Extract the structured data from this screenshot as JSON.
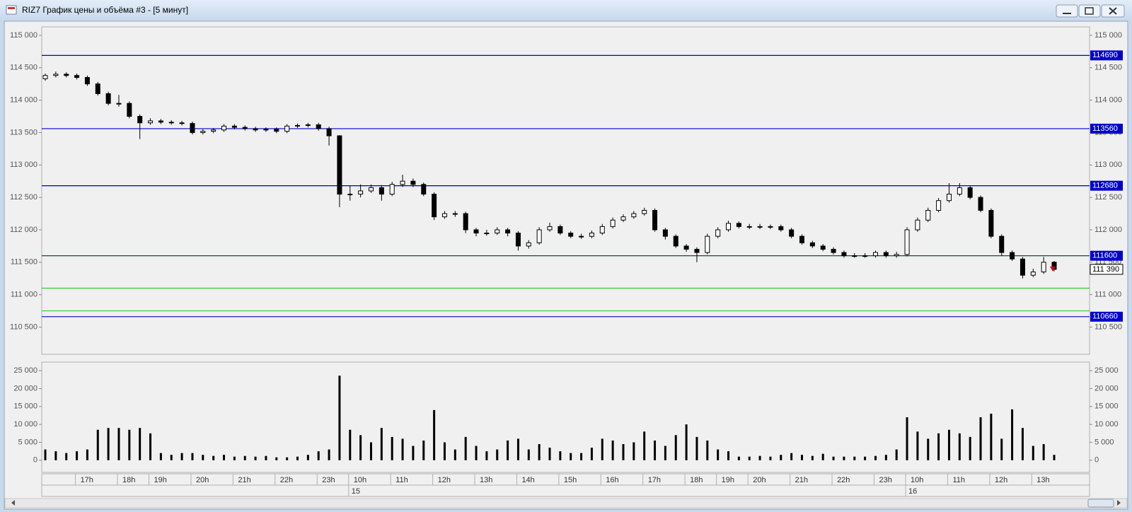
{
  "window": {
    "title": "RIZ7 График цены и объёма #3 - [5 минут]"
  },
  "chart_data": [
    {
      "type": "candlestick",
      "categories": [
        null,
        null,
        null,
        "17h",
        null,
        null,
        null,
        "18h",
        null,
        null,
        "19h",
        null,
        null,
        null,
        "20h",
        null,
        null,
        null,
        "21h",
        null,
        null,
        null,
        "22h",
        null,
        null,
        null,
        "23h",
        null,
        null,
        "10h",
        null,
        null,
        null,
        "11h",
        null,
        null,
        null,
        "12h",
        null,
        null,
        null,
        "13h",
        null,
        null,
        null,
        "14h",
        null,
        null,
        null,
        "15h",
        null,
        null,
        null,
        "16h",
        null,
        null,
        null,
        "17h",
        null,
        null,
        null,
        "18h",
        null,
        null,
        "19h",
        null,
        null,
        "20h",
        null,
        null,
        null,
        "21h",
        null,
        null,
        null,
        "22h",
        null,
        null,
        null,
        "23h",
        null,
        null,
        "10h",
        null,
        null,
        null,
        "11h",
        null,
        null,
        null,
        "12h",
        null,
        null,
        null,
        "13h",
        null,
        null
      ],
      "dates": [
        null,
        null,
        null,
        null,
        null,
        null,
        null,
        null,
        null,
        null,
        null,
        null,
        null,
        null,
        null,
        null,
        null,
        null,
        null,
        null,
        null,
        null,
        null,
        null,
        null,
        null,
        null,
        null,
        null,
        "15",
        null,
        null,
        null,
        null,
        null,
        null,
        null,
        null,
        null,
        null,
        null,
        null,
        null,
        null,
        null,
        null,
        null,
        null,
        null,
        null,
        null,
        null,
        null,
        null,
        null,
        null,
        null,
        null,
        null,
        null,
        null,
        null,
        null,
        null,
        null,
        null,
        null,
        null,
        null,
        null,
        null,
        null,
        null,
        null,
        null,
        null,
        null,
        null,
        null,
        null,
        null,
        null,
        "16",
        null,
        null,
        null,
        null,
        null,
        null,
        null,
        null,
        null,
        null,
        null,
        null,
        null,
        null
      ],
      "open": [
        114330,
        114380,
        114400,
        114380,
        114350,
        114250,
        114100,
        113950,
        113950,
        113750,
        113650,
        113680,
        113660,
        113650,
        113640,
        113500,
        113520,
        113540,
        113600,
        113580,
        113560,
        113540,
        113550,
        113520,
        113600,
        113610,
        113620,
        113560,
        113450,
        112550,
        112550,
        112600,
        112650,
        112550,
        112700,
        112750,
        112700,
        112550,
        112200,
        112250,
        112250,
        112000,
        111950,
        111950,
        112000,
        111950,
        111750,
        111800,
        112000,
        112050,
        111950,
        111900,
        111900,
        111950,
        112050,
        112150,
        112200,
        112250,
        112300,
        112000,
        111900,
        111750,
        111700,
        111650,
        111900,
        112000,
        112100,
        112050,
        112050,
        112050,
        112050,
        112000,
        111900,
        111800,
        111750,
        111700,
        111650,
        111600,
        111600,
        111600,
        111650,
        111600,
        111620,
        112000,
        112150,
        112300,
        112450,
        112550,
        112650,
        112500,
        112300,
        111900,
        111650,
        111550,
        111300,
        111350,
        111500
      ],
      "high": [
        114410,
        114440,
        114430,
        114410,
        114380,
        114280,
        114130,
        114080,
        113980,
        113780,
        113720,
        113710,
        113690,
        113680,
        113670,
        113550,
        113570,
        113630,
        113630,
        113610,
        113590,
        113580,
        113580,
        113630,
        113640,
        113650,
        113650,
        113590,
        113460,
        112680,
        112700,
        112700,
        112690,
        112740,
        112850,
        112790,
        112730,
        112580,
        112290,
        112290,
        112280,
        112030,
        112000,
        112040,
        112030,
        111980,
        111840,
        112040,
        112110,
        112080,
        111980,
        111940,
        111990,
        112090,
        112190,
        112240,
        112290,
        112340,
        112330,
        112030,
        111930,
        111780,
        111730,
        111940,
        112040,
        112140,
        112130,
        112090,
        112090,
        112080,
        112080,
        112030,
        111930,
        111830,
        111780,
        111730,
        111680,
        111640,
        111640,
        111680,
        111680,
        111660,
        112040,
        112190,
        112340,
        112490,
        112720,
        112720,
        112680,
        112530,
        112330,
        111930,
        111680,
        111580,
        111400,
        111580,
        111520
      ],
      "low": [
        114300,
        114350,
        114350,
        114320,
        114220,
        114070,
        113920,
        113900,
        113720,
        113400,
        113620,
        113630,
        113620,
        113610,
        113470,
        113470,
        113490,
        113510,
        113550,
        113530,
        113510,
        113510,
        113490,
        113490,
        113570,
        113580,
        113530,
        113300,
        112350,
        112450,
        112500,
        112570,
        112450,
        112520,
        112660,
        112660,
        112520,
        112150,
        112170,
        112200,
        111950,
        111900,
        111910,
        111920,
        111900,
        111680,
        111710,
        111770,
        111970,
        111920,
        111870,
        111860,
        111870,
        111920,
        112020,
        112120,
        112170,
        112220,
        111970,
        111850,
        111720,
        111660,
        111500,
        111620,
        111870,
        111970,
        112020,
        112010,
        112010,
        112010,
        111970,
        111870,
        111770,
        111720,
        111670,
        111620,
        111570,
        111570,
        111570,
        111570,
        111570,
        111570,
        111590,
        111970,
        112120,
        112270,
        112420,
        112520,
        112470,
        112270,
        111870,
        111600,
        111520,
        111250,
        111270,
        111320,
        111360
      ],
      "close": [
        114380,
        114400,
        114380,
        114350,
        114250,
        114100,
        113950,
        113950,
        113750,
        113650,
        113680,
        113660,
        113650,
        113640,
        113500,
        113520,
        113540,
        113600,
        113580,
        113560,
        113540,
        113550,
        113520,
        113600,
        113610,
        113620,
        113560,
        113450,
        112550,
        112550,
        112600,
        112650,
        112550,
        112700,
        112750,
        112700,
        112550,
        112200,
        112250,
        112250,
        112000,
        111950,
        111950,
        112000,
        111950,
        111750,
        111800,
        112000,
        112050,
        111950,
        111900,
        111900,
        111950,
        112050,
        112150,
        112200,
        112250,
        112300,
        112000,
        111900,
        111750,
        111700,
        111650,
        111900,
        112000,
        112100,
        112050,
        112050,
        112050,
        112050,
        112000,
        111900,
        111800,
        111750,
        111700,
        111650,
        111600,
        111600,
        111600,
        111650,
        111600,
        111620,
        112000,
        112150,
        112300,
        112450,
        112550,
        112650,
        112500,
        112300,
        111900,
        111650,
        111550,
        111300,
        111350,
        111500,
        111390
      ],
      "up_color": "#ffffff",
      "down_color": "#000000",
      "ylim": [
        110080,
        115130
      ],
      "yticks": [
        {
          "value": 110500,
          "label": "110 500"
        },
        {
          "value": 111000,
          "label": "111 000"
        },
        {
          "value": 111500,
          "label": "111 500"
        },
        {
          "value": 112000,
          "label": "112 000"
        },
        {
          "value": 112500,
          "label": "112 500"
        },
        {
          "value": 113000,
          "label": "113 000"
        },
        {
          "value": 113500,
          "label": "113 500"
        },
        {
          "value": 114000,
          "label": "114 000"
        },
        {
          "value": 114500,
          "label": "114 500"
        },
        {
          "value": 115000,
          "label": "115 000"
        }
      ],
      "levels": [
        {
          "value": 114690,
          "color": "#0000cc",
          "labeled": true
        },
        {
          "value": 113560,
          "color": "#0000cc",
          "labeled": true
        },
        {
          "value": 112680,
          "color": "#0000cc",
          "labeled": true
        },
        {
          "value": 111600,
          "color": "#00543a",
          "labeled": true
        },
        {
          "value": 111100,
          "color": "#33cc33",
          "labeled": false
        },
        {
          "value": 110750,
          "color": "#33cc33",
          "labeled": false
        },
        {
          "value": 110660,
          "color": "#0000cc",
          "labeled": true
        }
      ],
      "last_price": {
        "value": 111390,
        "label": "111 390"
      },
      "grid": false
    },
    {
      "type": "bar",
      "values": [
        3000,
        2500,
        2000,
        2500,
        3000,
        8500,
        9000,
        9000,
        8500,
        9000,
        7500,
        2000,
        1500,
        2000,
        2000,
        1500,
        1200,
        1500,
        1000,
        1200,
        1000,
        1200,
        800,
        800,
        1000,
        1500,
        2500,
        3000,
        23600,
        8500,
        7000,
        5000,
        9000,
        6500,
        6000,
        4000,
        5500,
        14000,
        5000,
        3000,
        6500,
        4000,
        2500,
        3000,
        5500,
        6000,
        3000,
        4500,
        3500,
        2500,
        2000,
        2000,
        3500,
        6000,
        5500,
        4500,
        5000,
        8000,
        5500,
        4000,
        7000,
        10000,
        6500,
        5500,
        3000,
        2500,
        1000,
        1000,
        1200,
        1000,
        1500,
        2000,
        1500,
        1200,
        1800,
        1000,
        1000,
        1000,
        1000,
        1200,
        1500,
        3000,
        12000,
        8000,
        6000,
        7500,
        8500,
        7500,
        6500,
        12000,
        13000,
        6000,
        14200,
        9000,
        4000,
        4500,
        1500
      ],
      "color": "#000000",
      "ylim": [
        -3400,
        27400
      ],
      "yticks": [
        0,
        {
          "value": 5000,
          "label": "5 000"
        },
        {
          "value": 10000,
          "label": "10 000"
        },
        {
          "value": 15000,
          "label": "15 000"
        },
        {
          "value": 20000,
          "label": "20 000"
        },
        {
          "value": 25000,
          "label": "25 000"
        }
      ],
      "grid": false
    }
  ]
}
